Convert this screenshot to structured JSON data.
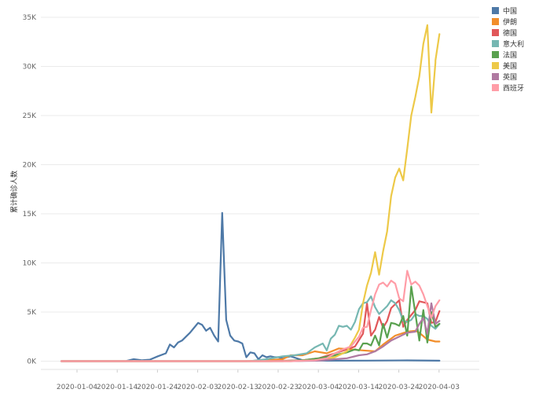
{
  "chart_data": {
    "type": "line",
    "ylabel": "累计确诊人数",
    "ylim": [
      0,
      35000
    ],
    "y_ticks": [
      {
        "value": 0,
        "label": "0K"
      },
      {
        "value": 5000,
        "label": "5K"
      },
      {
        "value": 10000,
        "label": "10K"
      },
      {
        "value": 15000,
        "label": "15K"
      },
      {
        "value": 20000,
        "label": "20K"
      },
      {
        "value": 25000,
        "label": "25K"
      },
      {
        "value": 30000,
        "label": "30K"
      },
      {
        "value": 35000,
        "label": "35K"
      }
    ],
    "x_ticks": [
      "2020-01-04",
      "2020-01-14",
      "2020-01-24",
      "2020-02-03",
      "2020-02-13",
      "2020-02-23",
      "2020-03-04",
      "2020-03-14",
      "2020-03-24",
      "2020-04-03"
    ],
    "x_start": "2020-01-04",
    "x_end": "2020-04-07",
    "grid": true,
    "legend_position": "top-right",
    "series": [
      {
        "name": "中国",
        "color": "#4e79a7",
        "points": [
          [
            "2020-01-04",
            0
          ],
          [
            "2020-01-20",
            0
          ],
          [
            "2020-01-22",
            200
          ],
          [
            "2020-01-24",
            100
          ],
          [
            "2020-01-26",
            150
          ],
          [
            "2020-01-28",
            500
          ],
          [
            "2020-01-30",
            800
          ],
          [
            "2020-01-31",
            1700
          ],
          [
            "2020-02-01",
            1400
          ],
          [
            "2020-02-02",
            1900
          ],
          [
            "2020-02-03",
            2100
          ],
          [
            "2020-02-04",
            2500
          ],
          [
            "2020-02-05",
            2900
          ],
          [
            "2020-02-06",
            3400
          ],
          [
            "2020-02-07",
            3900
          ],
          [
            "2020-02-08",
            3700
          ],
          [
            "2020-02-09",
            3100
          ],
          [
            "2020-02-10",
            3400
          ],
          [
            "2020-02-11",
            2600
          ],
          [
            "2020-02-12",
            2000
          ],
          [
            "2020-02-13",
            15100
          ],
          [
            "2020-02-14",
            4200
          ],
          [
            "2020-02-15",
            2600
          ],
          [
            "2020-02-16",
            2100
          ],
          [
            "2020-02-17",
            2000
          ],
          [
            "2020-02-18",
            1800
          ],
          [
            "2020-02-19",
            400
          ],
          [
            "2020-02-20",
            900
          ],
          [
            "2020-02-21",
            800
          ],
          [
            "2020-02-22",
            200
          ],
          [
            "2020-02-23",
            600
          ],
          [
            "2020-02-24",
            400
          ],
          [
            "2020-02-25",
            500
          ],
          [
            "2020-02-26",
            400
          ],
          [
            "2020-02-27",
            400
          ],
          [
            "2020-02-28",
            300
          ],
          [
            "2020-03-01",
            500
          ],
          [
            "2020-03-04",
            100
          ],
          [
            "2020-03-10",
            50
          ],
          [
            "2020-03-20",
            60
          ],
          [
            "2020-03-30",
            80
          ],
          [
            "2020-04-07",
            50
          ]
        ]
      },
      {
        "name": "伊朗",
        "color": "#f28e2b",
        "points": [
          [
            "2020-01-04",
            0
          ],
          [
            "2020-02-19",
            0
          ],
          [
            "2020-02-24",
            100
          ],
          [
            "2020-02-28",
            200
          ],
          [
            "2020-03-01",
            600
          ],
          [
            "2020-03-04",
            600
          ],
          [
            "2020-03-07",
            1000
          ],
          [
            "2020-03-10",
            800
          ],
          [
            "2020-03-13",
            1300
          ],
          [
            "2020-03-16",
            1200
          ],
          [
            "2020-03-19",
            1100
          ],
          [
            "2020-03-22",
            1000
          ],
          [
            "2020-03-24",
            1700
          ],
          [
            "2020-03-27",
            2600
          ],
          [
            "2020-03-30",
            3000
          ],
          [
            "2020-04-01",
            3100
          ],
          [
            "2020-04-02",
            2900
          ],
          [
            "2020-04-04",
            2200
          ],
          [
            "2020-04-06",
            2000
          ],
          [
            "2020-04-07",
            2000
          ]
        ]
      },
      {
        "name": "德国",
        "color": "#e15759",
        "points": [
          [
            "2020-01-04",
            0
          ],
          [
            "2020-02-25",
            0
          ],
          [
            "2020-03-04",
            100
          ],
          [
            "2020-03-08",
            300
          ],
          [
            "2020-03-12",
            800
          ],
          [
            "2020-03-15",
            1200
          ],
          [
            "2020-03-17",
            1500
          ],
          [
            "2020-03-19",
            2800
          ],
          [
            "2020-03-20",
            5900
          ],
          [
            "2020-03-21",
            2600
          ],
          [
            "2020-03-22",
            3200
          ],
          [
            "2020-03-23",
            4500
          ],
          [
            "2020-03-24",
            3400
          ],
          [
            "2020-03-25",
            4100
          ],
          [
            "2020-03-26",
            5400
          ],
          [
            "2020-03-27",
            5800
          ],
          [
            "2020-03-28",
            6200
          ],
          [
            "2020-03-29",
            3500
          ],
          [
            "2020-03-30",
            4200
          ],
          [
            "2020-04-01",
            5200
          ],
          [
            "2020-04-02",
            6100
          ],
          [
            "2020-04-04",
            5900
          ],
          [
            "2020-04-05",
            3900
          ],
          [
            "2020-04-06",
            4000
          ],
          [
            "2020-04-07",
            5100
          ]
        ]
      },
      {
        "name": "意大利",
        "color": "#76b7b2",
        "points": [
          [
            "2020-01-04",
            0
          ],
          [
            "2020-02-20",
            0
          ],
          [
            "2020-02-24",
            200
          ],
          [
            "2020-02-28",
            500
          ],
          [
            "2020-03-02",
            600
          ],
          [
            "2020-03-05",
            800
          ],
          [
            "2020-03-07",
            1400
          ],
          [
            "2020-03-09",
            1800
          ],
          [
            "2020-03-10",
            1100
          ],
          [
            "2020-03-11",
            2300
          ],
          [
            "2020-03-12",
            2700
          ],
          [
            "2020-03-13",
            3600
          ],
          [
            "2020-03-14",
            3500
          ],
          [
            "2020-03-15",
            3600
          ],
          [
            "2020-03-16",
            3200
          ],
          [
            "2020-03-17",
            4000
          ],
          [
            "2020-03-18",
            5300
          ],
          [
            "2020-03-19",
            5900
          ],
          [
            "2020-03-20",
            6000
          ],
          [
            "2020-03-21",
            6600
          ],
          [
            "2020-03-22",
            5500
          ],
          [
            "2020-03-23",
            4800
          ],
          [
            "2020-03-24",
            5200
          ],
          [
            "2020-03-25",
            5600
          ],
          [
            "2020-03-26",
            6200
          ],
          [
            "2020-03-27",
            5900
          ],
          [
            "2020-03-28",
            5200
          ],
          [
            "2020-03-29",
            4100
          ],
          [
            "2020-03-30",
            4000
          ],
          [
            "2020-03-31",
            4200
          ],
          [
            "2020-04-01",
            4800
          ],
          [
            "2020-04-02",
            4600
          ],
          [
            "2020-04-03",
            4600
          ],
          [
            "2020-04-04",
            4300
          ],
          [
            "2020-04-05",
            3600
          ],
          [
            "2020-04-06",
            3300
          ],
          [
            "2020-04-07",
            3800
          ]
        ]
      },
      {
        "name": "法国",
        "color": "#59a14f",
        "points": [
          [
            "2020-01-04",
            0
          ],
          [
            "2020-02-28",
            0
          ],
          [
            "2020-03-04",
            100
          ],
          [
            "2020-03-08",
            300
          ],
          [
            "2020-03-12",
            600
          ],
          [
            "2020-03-14",
            800
          ],
          [
            "2020-03-15",
            900
          ],
          [
            "2020-03-17",
            1200
          ],
          [
            "2020-03-18",
            1100
          ],
          [
            "2020-03-19",
            1800
          ],
          [
            "2020-03-20",
            1800
          ],
          [
            "2020-03-21",
            1600
          ],
          [
            "2020-03-22",
            2600
          ],
          [
            "2020-03-23",
            1600
          ],
          [
            "2020-03-24",
            3800
          ],
          [
            "2020-03-25",
            2400
          ],
          [
            "2020-03-26",
            3900
          ],
          [
            "2020-03-27",
            3800
          ],
          [
            "2020-03-28",
            3600
          ],
          [
            "2020-03-29",
            4600
          ],
          [
            "2020-03-30",
            2600
          ],
          [
            "2020-03-31",
            7600
          ],
          [
            "2020-04-01",
            4900
          ],
          [
            "2020-04-02",
            2100
          ],
          [
            "2020-04-03",
            5200
          ],
          [
            "2020-04-04",
            1900
          ],
          [
            "2020-04-05",
            5000
          ],
          [
            "2020-04-06",
            3500
          ],
          [
            "2020-04-07",
            3800
          ]
        ]
      },
      {
        "name": "美国",
        "color": "#edc948",
        "points": [
          [
            "2020-01-04",
            0
          ],
          [
            "2020-03-01",
            0
          ],
          [
            "2020-03-08",
            100
          ],
          [
            "2020-03-12",
            400
          ],
          [
            "2020-03-15",
            1000
          ],
          [
            "2020-03-17",
            2400
          ],
          [
            "2020-03-18",
            3200
          ],
          [
            "2020-03-19",
            5900
          ],
          [
            "2020-03-20",
            7700
          ],
          [
            "2020-03-21",
            9000
          ],
          [
            "2020-03-22",
            11100
          ],
          [
            "2020-03-23",
            8800
          ],
          [
            "2020-03-24",
            11200
          ],
          [
            "2020-03-25",
            13200
          ],
          [
            "2020-03-26",
            16800
          ],
          [
            "2020-03-27",
            18700
          ],
          [
            "2020-03-28",
            19600
          ],
          [
            "2020-03-29",
            18400
          ],
          [
            "2020-03-30",
            21600
          ],
          [
            "2020-03-31",
            25000
          ],
          [
            "2020-04-01",
            26900
          ],
          [
            "2020-04-02",
            29000
          ],
          [
            "2020-04-03",
            32300
          ],
          [
            "2020-04-04",
            34200
          ],
          [
            "2020-04-05",
            25300
          ],
          [
            "2020-04-06",
            30400
          ],
          [
            "2020-04-06",
            30600
          ],
          [
            "2020-04-07",
            33300
          ]
        ]
      },
      {
        "name": "英国",
        "color": "#b07aa1",
        "points": [
          [
            "2020-01-04",
            0
          ],
          [
            "2020-03-01",
            0
          ],
          [
            "2020-03-08",
            50
          ],
          [
            "2020-03-12",
            200
          ],
          [
            "2020-03-15",
            300
          ],
          [
            "2020-03-18",
            600
          ],
          [
            "2020-03-20",
            700
          ],
          [
            "2020-03-22",
            1000
          ],
          [
            "2020-03-24",
            1500
          ],
          [
            "2020-03-26",
            2100
          ],
          [
            "2020-03-28",
            2500
          ],
          [
            "2020-03-30",
            2900
          ],
          [
            "2020-04-01",
            3000
          ],
          [
            "2020-04-02",
            3800
          ],
          [
            "2020-04-03",
            4400
          ],
          [
            "2020-04-04",
            2800
          ],
          [
            "2020-04-05",
            5900
          ],
          [
            "2020-04-06",
            3800
          ],
          [
            "2020-04-07",
            4100
          ]
        ]
      },
      {
        "name": "西班牙",
        "color": "#ff9da7",
        "points": [
          [
            "2020-01-04",
            0
          ],
          [
            "2020-03-01",
            0
          ],
          [
            "2020-03-07",
            100
          ],
          [
            "2020-03-10",
            300
          ],
          [
            "2020-03-12",
            800
          ],
          [
            "2020-03-14",
            1200
          ],
          [
            "2020-03-16",
            1500
          ],
          [
            "2020-03-17",
            2000
          ],
          [
            "2020-03-18",
            2500
          ],
          [
            "2020-03-19",
            3400
          ],
          [
            "2020-03-20",
            3500
          ],
          [
            "2020-03-21",
            5200
          ],
          [
            "2020-03-22",
            6800
          ],
          [
            "2020-03-23",
            7800
          ],
          [
            "2020-03-24",
            8000
          ],
          [
            "2020-03-25",
            7600
          ],
          [
            "2020-03-26",
            8200
          ],
          [
            "2020-03-27",
            7900
          ],
          [
            "2020-03-28",
            6400
          ],
          [
            "2020-03-29",
            6100
          ],
          [
            "2020-03-30",
            9200
          ],
          [
            "2020-03-31",
            7800
          ],
          [
            "2020-04-01",
            8100
          ],
          [
            "2020-04-02",
            7700
          ],
          [
            "2020-04-03",
            6800
          ],
          [
            "2020-04-04",
            5600
          ],
          [
            "2020-04-05",
            4400
          ],
          [
            "2020-04-06",
            5600
          ],
          [
            "2020-04-07",
            6200
          ]
        ]
      }
    ]
  }
}
